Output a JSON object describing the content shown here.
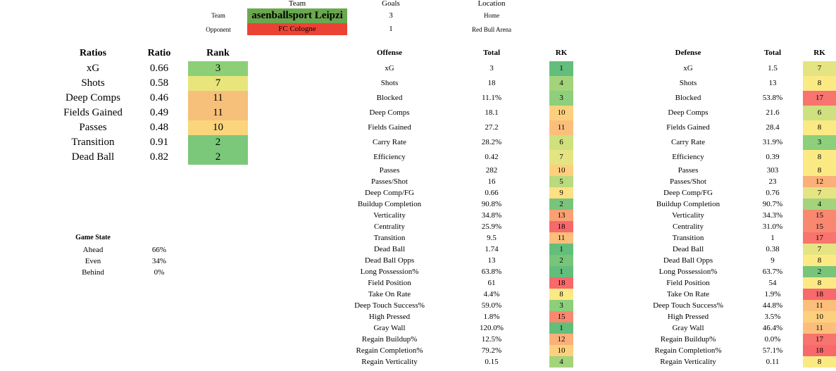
{
  "header": {
    "team_col": "Team",
    "goals_col": "Goals",
    "location_col": "Location",
    "team_label": "Team",
    "opponent_label": "Opponent",
    "team_name": "asenballsport Leipzi",
    "opponent_name": "FC Cologne",
    "team_goals": "3",
    "opponent_goals": "1",
    "team_location": "Home",
    "opponent_location": "Red Bull Arena",
    "team_color": "#6aa84f",
    "opponent_color": "#ea4335"
  },
  "ratios": {
    "header_label": "Ratios",
    "header_ratio": "Ratio",
    "header_rank": "Rank",
    "rows": [
      {
        "label": "xG",
        "ratio": "0.66",
        "rank": "3",
        "color": "#8dcf77"
      },
      {
        "label": "Shots",
        "ratio": "0.58",
        "rank": "7",
        "color": "#e8e57c"
      },
      {
        "label": "Deep Comps",
        "ratio": "0.46",
        "rank": "11",
        "color": "#f6c07a"
      },
      {
        "label": "Fields Gained",
        "ratio": "0.49",
        "rank": "11",
        "color": "#f6c07a"
      },
      {
        "label": "Passes",
        "ratio": "0.48",
        "rank": "10",
        "color": "#fbd57c"
      },
      {
        "label": "Transition",
        "ratio": "0.91",
        "rank": "2",
        "color": "#7bc87a"
      },
      {
        "label": "Dead Ball",
        "ratio": "0.82",
        "rank": "2",
        "color": "#7bc87a"
      }
    ]
  },
  "game_state": {
    "title": "Game State",
    "rows": [
      {
        "label": "Ahead",
        "value": "66%"
      },
      {
        "label": "Even",
        "value": "34%"
      },
      {
        "label": "Behind",
        "value": "0%"
      }
    ]
  },
  "offense": {
    "header_label": "Offense",
    "header_total": "Total",
    "header_rk": "RK",
    "rows": [
      {
        "label": "xG",
        "total": "3",
        "rk": "1",
        "color": "#63be7b"
      },
      {
        "label": "Shots",
        "total": "18",
        "rk": "4",
        "color": "#a3d47c"
      },
      {
        "label": "Blocked",
        "total": "11.1%",
        "rk": "3",
        "color": "#8dcf7b"
      },
      {
        "label": "Deep Comps",
        "total": "18.1",
        "rk": "10",
        "color": "#fdd07e"
      },
      {
        "label": "Fields Gained",
        "total": "27.2",
        "rk": "11",
        "color": "#fcbf7b"
      },
      {
        "label": "Carry Rate",
        "total": "28.2%",
        "rk": "6",
        "color": "#cfe07f"
      },
      {
        "label": "Efficiency",
        "total": "0.42",
        "rk": "7",
        "color": "#e5e482"
      },
      {
        "label": "Passes",
        "total": "282",
        "rk": "10",
        "color": "#fdd07e"
      },
      {
        "label": "Passes/Shot",
        "total": "16",
        "rk": "5",
        "color": "#bada7e"
      },
      {
        "label": "Deep Comp/FG",
        "total": "0.66",
        "rk": "9",
        "color": "#fde182"
      },
      {
        "label": "Buildup Completion",
        "total": "90.8%",
        "rk": "2",
        "color": "#78c47b"
      },
      {
        "label": "Verticality",
        "total": "34.8%",
        "rk": "13",
        "color": "#f9a173"
      },
      {
        "label": "Centrality",
        "total": "25.9%",
        "rk": "18",
        "color": "#f8696b"
      },
      {
        "label": "Transition",
        "total": "9.5",
        "rk": "11",
        "color": "#fcbf7b"
      },
      {
        "label": "Dead Ball",
        "total": "1.74",
        "rk": "1",
        "color": "#63be7b"
      },
      {
        "label": "Dead Ball Opps",
        "total": "13",
        "rk": "2",
        "color": "#78c47b"
      },
      {
        "label": "Long Possession%",
        "total": "63.8%",
        "rk": "1",
        "color": "#63be7b"
      },
      {
        "label": "Field Position",
        "total": "61",
        "rk": "18",
        "color": "#f8696b"
      },
      {
        "label": "Take On Rate",
        "total": "4.4%",
        "rk": "8",
        "color": "#fbea84"
      },
      {
        "label": "Deep Touch Success%",
        "total": "59.0%",
        "rk": "3",
        "color": "#8dcf7b"
      },
      {
        "label": "High Pressed",
        "total": "1.8%",
        "rk": "15",
        "color": "#f98870"
      },
      {
        "label": "Gray Wall",
        "total": "120.0%",
        "rk": "1",
        "color": "#63be7b"
      },
      {
        "label": "Regain Buildup%",
        "total": "12.5%",
        "rk": "12",
        "color": "#fbb079"
      },
      {
        "label": "Regain Completion%",
        "total": "79.2%",
        "rk": "10",
        "color": "#fdd07e"
      },
      {
        "label": "Regain Verticality",
        "total": "0.15",
        "rk": "4",
        "color": "#a3d47c"
      }
    ]
  },
  "defense": {
    "header_label": "Defense",
    "header_total": "Total",
    "header_rk": "RK",
    "rows": [
      {
        "label": "xG",
        "total": "1.5",
        "rk": "7",
        "color": "#e5e482"
      },
      {
        "label": "Shots",
        "total": "13",
        "rk": "8",
        "color": "#fbea84"
      },
      {
        "label": "Blocked",
        "total": "53.8%",
        "rk": "17",
        "color": "#f8746e"
      },
      {
        "label": "Deep Comps",
        "total": "21.6",
        "rk": "6",
        "color": "#cfe07f"
      },
      {
        "label": "Fields Gained",
        "total": "28.4",
        "rk": "8",
        "color": "#fbea84"
      },
      {
        "label": "Carry Rate",
        "total": "31.9%",
        "rk": "3",
        "color": "#8dcf7b"
      },
      {
        "label": "Efficiency",
        "total": "0.39",
        "rk": "8",
        "color": "#fbea84"
      },
      {
        "label": "Passes",
        "total": "303",
        "rk": "8",
        "color": "#fbea84"
      },
      {
        "label": "Passes/Shot",
        "total": "23",
        "rk": "12",
        "color": "#fbb079"
      },
      {
        "label": "Deep Comp/FG",
        "total": "0.76",
        "rk": "7",
        "color": "#e5e482"
      },
      {
        "label": "Buildup Completion",
        "total": "90.7%",
        "rk": "4",
        "color": "#a3d47c"
      },
      {
        "label": "Verticality",
        "total": "34.3%",
        "rk": "15",
        "color": "#f98870"
      },
      {
        "label": "Centrality",
        "total": "31.0%",
        "rk": "15",
        "color": "#f98870"
      },
      {
        "label": "Transition",
        "total": "1",
        "rk": "17",
        "color": "#f8746e"
      },
      {
        "label": "Dead Ball",
        "total": "0.38",
        "rk": "7",
        "color": "#e5e482"
      },
      {
        "label": "Dead Ball Opps",
        "total": "9",
        "rk": "8",
        "color": "#fbea84"
      },
      {
        "label": "Long Possession%",
        "total": "63.7%",
        "rk": "2",
        "color": "#78c47b"
      },
      {
        "label": "Field Position",
        "total": "54",
        "rk": "8",
        "color": "#fbea84"
      },
      {
        "label": "Take On Rate",
        "total": "1.9%",
        "rk": "18",
        "color": "#f8696b"
      },
      {
        "label": "Deep Touch Success%",
        "total": "44.8%",
        "rk": "11",
        "color": "#fcbf7b"
      },
      {
        "label": "High Pressed",
        "total": "3.5%",
        "rk": "10",
        "color": "#fdd07e"
      },
      {
        "label": "Gray Wall",
        "total": "46.4%",
        "rk": "11",
        "color": "#fcbf7b"
      },
      {
        "label": "Regain Buildup%",
        "total": "0.0%",
        "rk": "17",
        "color": "#f8746e"
      },
      {
        "label": "Regain Completion%",
        "total": "57.1%",
        "rk": "18",
        "color": "#f8696b"
      },
      {
        "label": "Regain Verticality",
        "total": "0.11",
        "rk": "8",
        "color": "#fbea84"
      }
    ]
  }
}
